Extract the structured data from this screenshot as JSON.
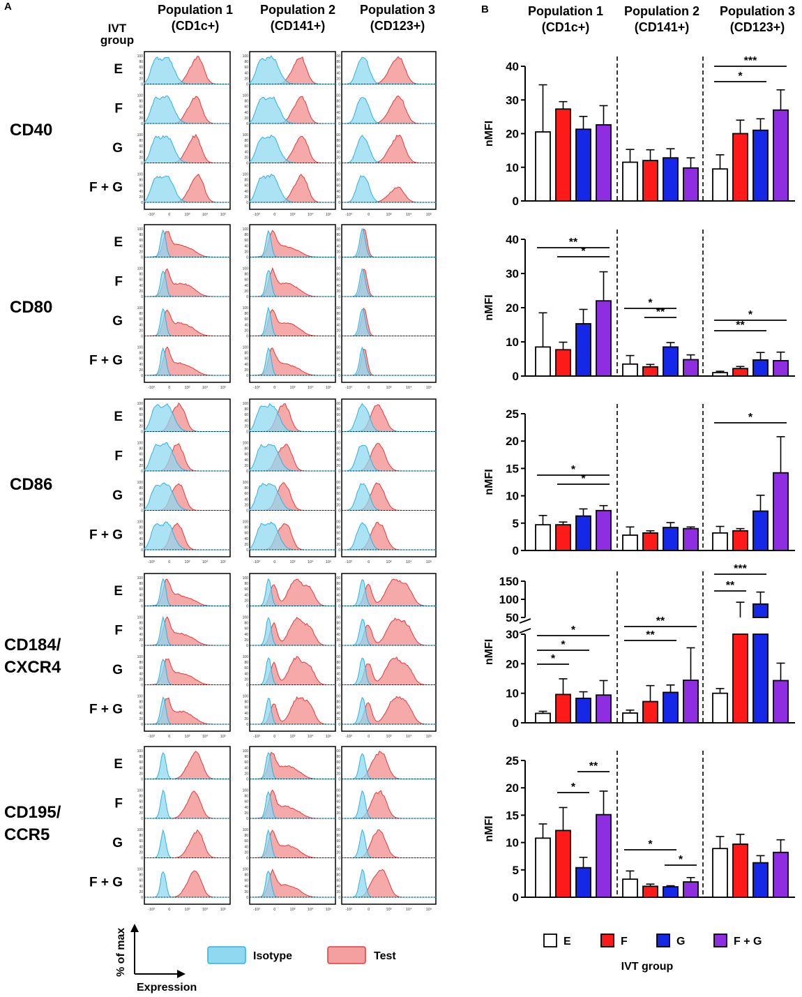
{
  "panel_labels": {
    "a": "A",
    "b": "B"
  },
  "ivt_group_header": [
    "IVT",
    "group"
  ],
  "populations": [
    {
      "line1": "Population 1",
      "line2": "(CD1c+)"
    },
    {
      "line1": "Population 2",
      "line2": "(CD141+)"
    },
    {
      "line1": "Population 3",
      "line2": "(CD123+)"
    }
  ],
  "markers": [
    {
      "lines": [
        "CD40"
      ]
    },
    {
      "lines": [
        "CD80"
      ]
    },
    {
      "lines": [
        "CD86"
      ]
    },
    {
      "lines": [
        "CD184/",
        "CXCR4"
      ]
    },
    {
      "lines": [
        "CD195/",
        "CCR5"
      ]
    }
  ],
  "groups": [
    "E",
    "F",
    "G",
    "F + G"
  ],
  "histogram_axes": {
    "y_ticks": [
      "100",
      "80",
      "60",
      "40",
      "20",
      "0"
    ],
    "x_ticks": [
      "-10³",
      "0",
      "10³",
      "10⁴",
      "10⁵"
    ]
  },
  "histogram_legend": {
    "isotype": "Isotype",
    "test": "Test"
  },
  "axis_hint": {
    "y": "% of max",
    "x": "Expression"
  },
  "colors": {
    "isotype_fill": "#8fd8f0",
    "isotype_stroke": "#2cb2e2",
    "test_fill": "#f4a0a0",
    "test_stroke": "#e23a3a",
    "overlap_fill": "#8a9fb4",
    "E": "#ffffff",
    "F": "#ff1a1a",
    "G": "#1528e8",
    "F + G": "#8f2ee0"
  },
  "bar_legend": {
    "items": [
      "E",
      "F",
      "G",
      "F + G"
    ],
    "title": "IVT group"
  },
  "chart_data": [
    {
      "type": "bar",
      "marker": "CD40",
      "ylabel": "nMFI",
      "ylim": [
        0,
        40
      ],
      "yticks": [
        "0",
        "10",
        "20",
        "30",
        "40"
      ],
      "categories": [
        "Population 1 (CD1c+)",
        "Population 2 (CD141+)",
        "Population 3 (CD123+)"
      ],
      "series": [
        {
          "name": "E",
          "values": [
            20.5,
            11.5,
            9.5
          ],
          "errors": [
            14,
            3.8,
            4.2
          ]
        },
        {
          "name": "F",
          "values": [
            27.3,
            12,
            20
          ],
          "errors": [
            2.2,
            3.2,
            4
          ]
        },
        {
          "name": "G",
          "values": [
            21.3,
            12.8,
            21
          ],
          "errors": [
            3.8,
            2.7,
            3.4
          ]
        },
        {
          "name": "F + G",
          "values": [
            22.6,
            9.8,
            27
          ],
          "errors": [
            5.7,
            3,
            6
          ]
        }
      ],
      "significance": [
        {
          "population": 3,
          "from": "E",
          "to": "F + G",
          "label": "***"
        },
        {
          "population": 3,
          "from": "E",
          "to": "G",
          "label": "*"
        }
      ]
    },
    {
      "type": "bar",
      "marker": "CD80",
      "ylabel": "nMFI",
      "ylim": [
        0,
        40
      ],
      "yticks": [
        "0",
        "10",
        "20",
        "30",
        "40"
      ],
      "categories": [
        "Population 1 (CD1c+)",
        "Population 2 (CD141+)",
        "Population 3 (CD123+)"
      ],
      "series": [
        {
          "name": "E",
          "values": [
            8.5,
            3.5,
            1
          ],
          "errors": [
            10,
            2.5,
            0.4
          ]
        },
        {
          "name": "F",
          "values": [
            7.7,
            2.7,
            2.2
          ],
          "errors": [
            2.2,
            0.7,
            0.6
          ]
        },
        {
          "name": "G",
          "values": [
            15.3,
            8.5,
            4.7
          ],
          "errors": [
            4.2,
            1.3,
            2.2
          ]
        },
        {
          "name": "F + G",
          "values": [
            22,
            4.8,
            4.5
          ],
          "errors": [
            8.5,
            1.4,
            2.5
          ]
        }
      ],
      "significance": [
        {
          "population": 1,
          "from": "E",
          "to": "F + G",
          "label": "**"
        },
        {
          "population": 1,
          "from": "F",
          "to": "F + G",
          "label": "*"
        },
        {
          "population": 2,
          "from": "E",
          "to": "G",
          "label": "*"
        },
        {
          "population": 2,
          "from": "F",
          "to": "G",
          "label": "**"
        },
        {
          "population": 3,
          "from": "E",
          "to": "F + G",
          "label": "*"
        },
        {
          "population": 3,
          "from": "E",
          "to": "G",
          "label": "**"
        }
      ]
    },
    {
      "type": "bar",
      "marker": "CD86",
      "ylabel": "nMFI",
      "ylim": [
        0,
        25
      ],
      "yticks": [
        "0",
        "5",
        "10",
        "15",
        "20",
        "25"
      ],
      "categories": [
        "Population 1 (CD1c+)",
        "Population 2 (CD141+)",
        "Population 3 (CD123+)"
      ],
      "series": [
        {
          "name": "E",
          "values": [
            4.7,
            2.8,
            3.2
          ],
          "errors": [
            1.7,
            1.5,
            1.2
          ]
        },
        {
          "name": "F",
          "values": [
            4.7,
            3.2,
            3.6
          ],
          "errors": [
            0.5,
            0.4,
            0.4
          ]
        },
        {
          "name": "G",
          "values": [
            6.3,
            4.2,
            7.2
          ],
          "errors": [
            1.3,
            0.9,
            2.9
          ]
        },
        {
          "name": "F + G",
          "values": [
            7.3,
            4,
            14.2
          ],
          "errors": [
            0.9,
            0.3,
            6.6
          ]
        }
      ],
      "significance": [
        {
          "population": 1,
          "from": "E",
          "to": "F + G",
          "label": "*"
        },
        {
          "population": 1,
          "from": "F",
          "to": "F + G",
          "label": "*"
        },
        {
          "population": 3,
          "from": "E",
          "to": "F + G",
          "label": "*"
        }
      ]
    },
    {
      "type": "bar",
      "marker": "CD184/CXCR4",
      "ylabel": "nMFI",
      "broken_axis": true,
      "ylim_lower": [
        0,
        30
      ],
      "yticks_lower": [
        "0",
        "10",
        "20",
        "30"
      ],
      "ylim_upper": [
        50,
        150
      ],
      "yticks_upper": [
        "50",
        "100",
        "150"
      ],
      "categories": [
        "Population 1 (CD1c+)",
        "Population 2 (CD141+)",
        "Population 3 (CD123+)"
      ],
      "series": [
        {
          "name": "E",
          "values": [
            3.2,
            3.3,
            10
          ],
          "errors": [
            0.7,
            1,
            1.6
          ]
        },
        {
          "name": "F",
          "values": [
            9.6,
            7.2,
            50
          ],
          "errors": [
            5.3,
            5.4,
            42
          ]
        },
        {
          "name": "G",
          "values": [
            8.3,
            10.3,
            87
          ],
          "errors": [
            2.2,
            2.5,
            33
          ]
        },
        {
          "name": "F + G",
          "values": [
            9.4,
            14.4,
            14.3
          ],
          "errors": [
            4.9,
            11,
            5.9
          ]
        }
      ],
      "significance": [
        {
          "population": 1,
          "from": "E",
          "to": "F",
          "label": "*"
        },
        {
          "population": 1,
          "from": "E",
          "to": "G",
          "label": "*"
        },
        {
          "population": 1,
          "from": "E",
          "to": "F + G",
          "label": "*"
        },
        {
          "population": 2,
          "from": "E",
          "to": "G",
          "label": "**"
        },
        {
          "population": 2,
          "from": "E",
          "to": "F + G",
          "label": "**"
        },
        {
          "population": 3,
          "from": "E",
          "to": "F",
          "label": "**"
        },
        {
          "population": 3,
          "from": "E",
          "to": "G",
          "label": "***"
        }
      ]
    },
    {
      "type": "bar",
      "marker": "CD195/CCR5",
      "ylabel": "nMFI",
      "ylim": [
        0,
        25
      ],
      "yticks": [
        "0",
        "5",
        "10",
        "15",
        "20",
        "25"
      ],
      "categories": [
        "Population 1 (CD1c+)",
        "Population 2 (CD141+)",
        "Population 3 (CD123+)"
      ],
      "series": [
        {
          "name": "E",
          "values": [
            10.8,
            3.3,
            8.9
          ],
          "errors": [
            2.6,
            1.5,
            2.2
          ]
        },
        {
          "name": "F",
          "values": [
            12.2,
            2,
            9.7
          ],
          "errors": [
            4.2,
            0.4,
            1.8
          ]
        },
        {
          "name": "G",
          "values": [
            5.4,
            1.9,
            6.3
          ],
          "errors": [
            1.9,
            0.2,
            1.3
          ]
        },
        {
          "name": "F + G",
          "values": [
            15.1,
            2.8,
            8.2
          ],
          "errors": [
            4.3,
            0.8,
            2.3
          ]
        }
      ],
      "significance": [
        {
          "population": 1,
          "from": "F",
          "to": "G",
          "label": "*"
        },
        {
          "population": 1,
          "from": "G",
          "to": "F + G",
          "label": "**"
        },
        {
          "population": 2,
          "from": "E",
          "to": "G",
          "label": "*"
        },
        {
          "population": 2,
          "from": "G",
          "to": "F + G",
          "label": "*"
        }
      ]
    }
  ]
}
